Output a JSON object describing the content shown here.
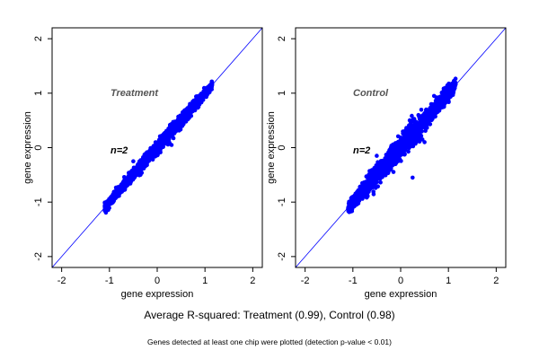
{
  "chart_data": [
    {
      "type": "scatter",
      "title": "Treatment",
      "annotation": "n=2",
      "xlabel": "gene expression",
      "ylabel": "gene expression",
      "xlim": [
        -2.2,
        2.2
      ],
      "ylim": [
        -2.2,
        2.2
      ],
      "xticks": [
        "-2",
        "-1",
        "0",
        "1",
        "2"
      ],
      "yticks": [
        "-2",
        "-1",
        "0",
        "1",
        "2"
      ],
      "diagonal_line": true,
      "point_color": "#0000ff",
      "line_color": "#0000ff",
      "x_range": [
        -1.1,
        1.15
      ],
      "spread": 0.06,
      "outliers": [
        [
          0.3,
          0.05
        ],
        [
          0.15,
          0.2
        ],
        [
          -0.5,
          -0.25
        ],
        [
          -0.35,
          -0.5
        ]
      ]
    },
    {
      "type": "scatter",
      "title": "Control",
      "annotation": "n=2",
      "xlabel": "gene expression",
      "ylabel": "gene expression",
      "xlim": [
        -2.2,
        2.2
      ],
      "ylim": [
        -2.2,
        2.2
      ],
      "xticks": [
        "-2",
        "-1",
        "0",
        "1",
        "2"
      ],
      "yticks": [
        "-2",
        "-1",
        "0",
        "1",
        "2"
      ],
      "diagonal_line": true,
      "point_color": "#0000ff",
      "line_color": "#0000ff",
      "x_range": [
        -1.1,
        1.15
      ],
      "spread": 0.1,
      "outliers": [
        [
          0.25,
          -0.55
        ],
        [
          0.5,
          0.1
        ],
        [
          0.2,
          0.35
        ],
        [
          -0.5,
          -0.15
        ],
        [
          0.7,
          0.95
        ]
      ]
    }
  ],
  "captions": {
    "r_squared": "Average R-squared: Treatment (0.99), Control (0.98)",
    "note": "Genes detected at least one chip were plotted (detection p-value < 0.01)"
  }
}
